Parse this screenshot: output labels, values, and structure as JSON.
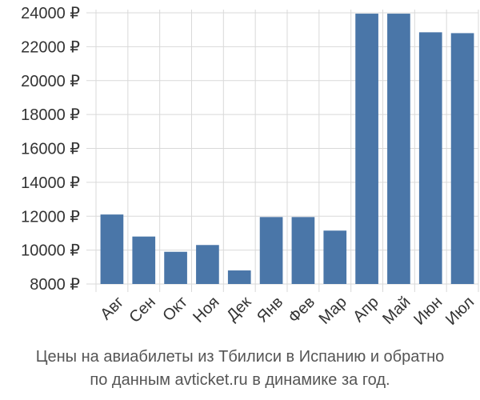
{
  "chart_data": {
    "type": "bar",
    "categories": [
      "Авг",
      "Сен",
      "Окт",
      "Ноя",
      "Дек",
      "Янв",
      "Фев",
      "Мар",
      "Апр",
      "Май",
      "Июн",
      "Июл"
    ],
    "values": [
      12100,
      10800,
      9900,
      10300,
      8800,
      11950,
      11950,
      11150,
      23950,
      23950,
      22850,
      22800
    ],
    "ylim": [
      8000,
      24000
    ],
    "yticks": [
      8000,
      10000,
      12000,
      14000,
      16000,
      18000,
      20000,
      22000,
      24000
    ],
    "ytick_suffix": " ₽",
    "grid": true,
    "bar_color": "#4a76a8",
    "grid_color": "#d9d9d9"
  },
  "caption": {
    "line1": "Цены на авиабилеты из Тбилиси в Испанию и обратно",
    "line2": "по данным avticket.ru в динамике за год."
  }
}
